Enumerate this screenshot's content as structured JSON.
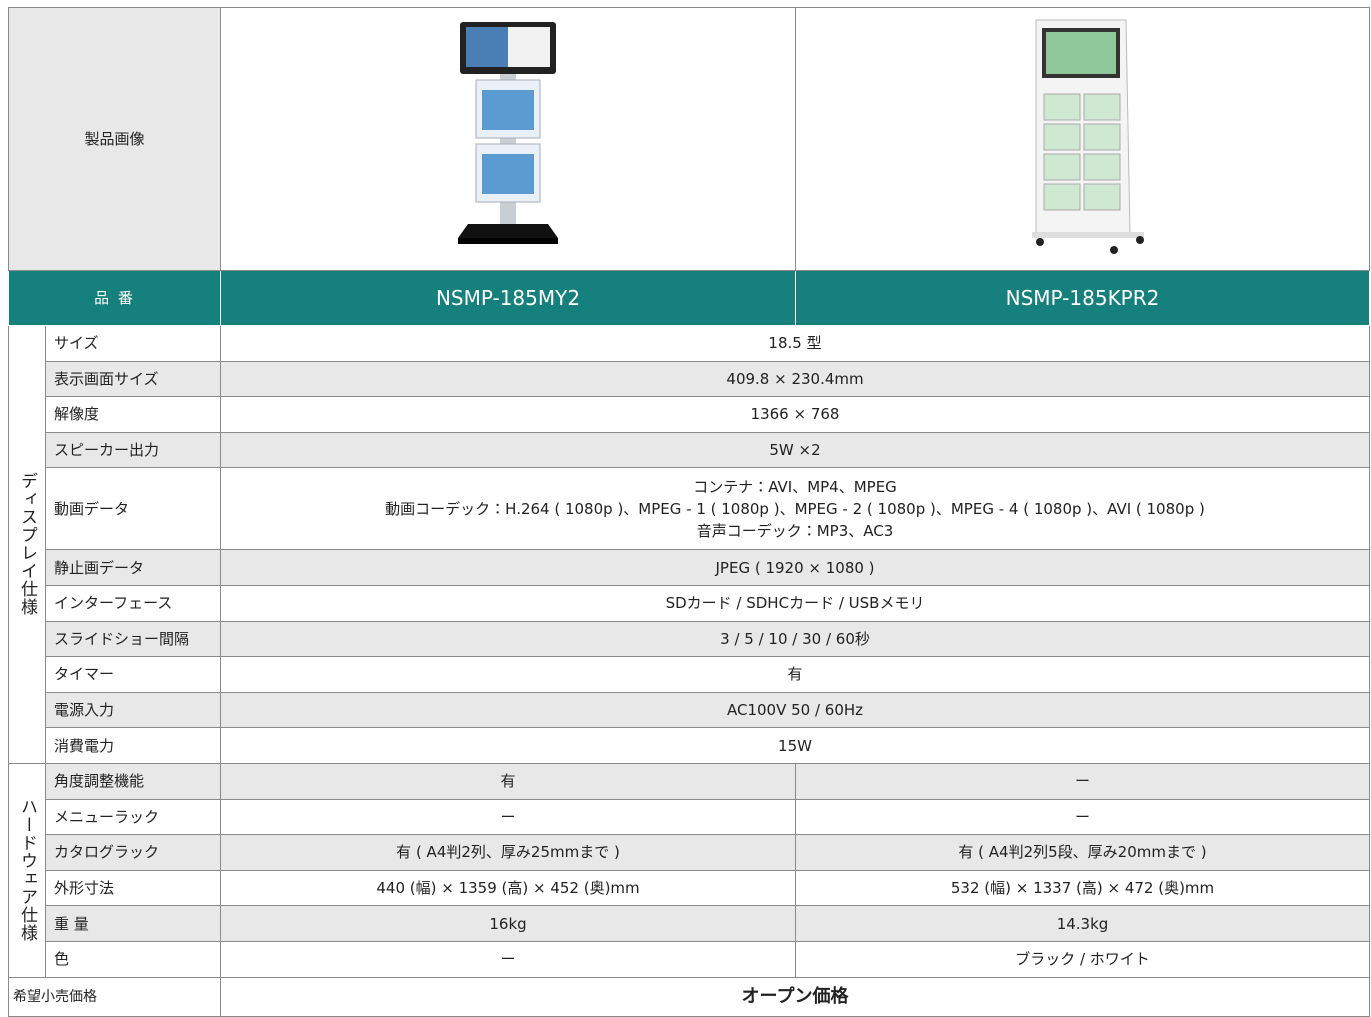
{
  "image_row": {
    "label": "製品画像"
  },
  "header": {
    "label": "品 番",
    "products": [
      "NSMP-185MY2",
      "NSMP-185KPR2"
    ]
  },
  "groups": [
    {
      "label": "ディスプレイ仕様",
      "rows": [
        {
          "label": "サイズ",
          "value": "18.5 型"
        },
        {
          "label": "表示画面サイズ",
          "value": "409.8 × 230.4mm"
        },
        {
          "label": "解像度",
          "value": "1366 × 768"
        },
        {
          "label": "スピーカー出力",
          "value": "5W ×2"
        },
        {
          "label": "動画データ",
          "lines": [
            "コンテナ：AVI、MP4、MPEG",
            "動画コーデック：H.264 ( 1080p )、MPEG - 1 ( 1080p )、MPEG - 2 ( 1080p )、MPEG - 4 ( 1080p )、AVI ( 1080p )",
            "音声コーデック：MP3、AC3"
          ]
        },
        {
          "label": "静止画データ",
          "value": "JPEG ( 1920 × 1080 )"
        },
        {
          "label": "インターフェース",
          "value": "SDカード / SDHCカード / USBメモリ"
        },
        {
          "label": "スライドショー間隔",
          "value": "3 / 5 / 10 / 30 / 60秒"
        },
        {
          "label": "タイマー",
          "value": "有"
        },
        {
          "label": "電源入力",
          "value": "AC100V 50 / 60Hz"
        },
        {
          "label": "消費電力",
          "value": "15W"
        }
      ]
    },
    {
      "label": "ハードウェア仕様",
      "rows": [
        {
          "label": "角度調整機能",
          "values": [
            "有",
            "ー"
          ]
        },
        {
          "label": "メニューラック",
          "values": [
            "ー",
            "ー"
          ]
        },
        {
          "label": "カタログラック",
          "values": [
            "有 ( A4判2列、厚み25mmまで )",
            "有 ( A4判2列5段、厚み20mmまで )"
          ]
        },
        {
          "label": "外形寸法",
          "values": [
            "440 (幅) × 1359 (高) × 452 (奥)mm",
            "532 (幅) × 1337 (高) × 472 (奥)mm"
          ]
        },
        {
          "label": "重 量",
          "values": [
            "16kg",
            "14.3kg"
          ]
        },
        {
          "label": "色",
          "values": [
            "ー",
            "ブラック / ホワイト"
          ]
        }
      ]
    }
  ],
  "price": {
    "label": "希望小売価格",
    "value": "オープン価格"
  }
}
